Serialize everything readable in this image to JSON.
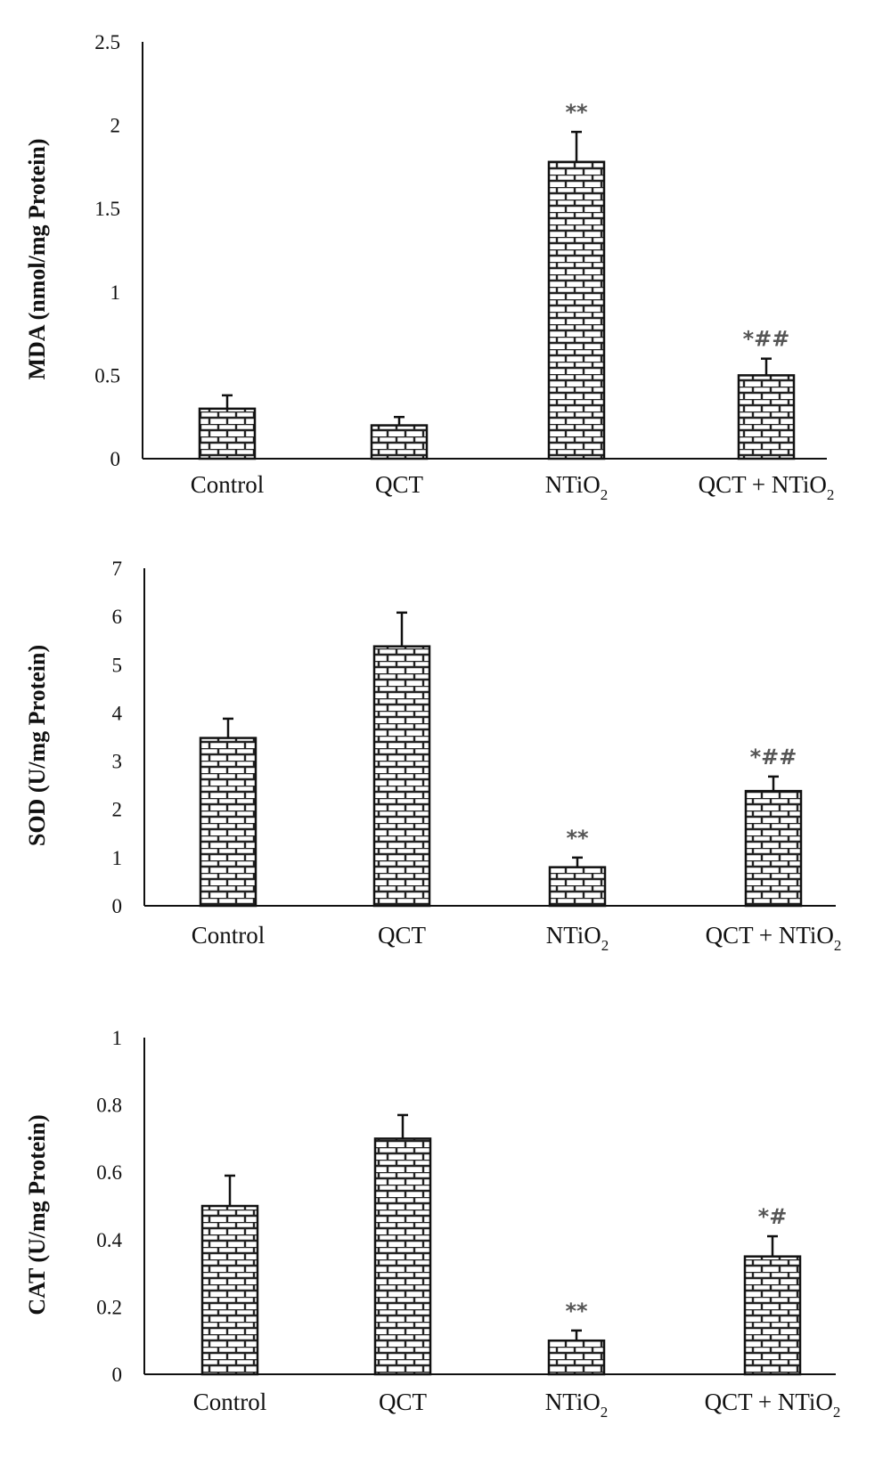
{
  "colors": {
    "axis": "#111111",
    "bar_fill": "#ffffff",
    "bar_pattern": "#222222",
    "annotation": "#555555"
  },
  "chart_data": [
    {
      "type": "bar",
      "title": "",
      "xlabel": "",
      "ylabel": "MDA (nmol/mg Protein)",
      "ylim": [
        0,
        2.5
      ],
      "yticks": [
        "0",
        "0.5",
        "1",
        "1.5",
        "2",
        "2.5"
      ],
      "categories": [
        {
          "base": "Control",
          "sub": ""
        },
        {
          "base": "QCT",
          "sub": ""
        },
        {
          "base": "NTiO",
          "sub": "2"
        },
        {
          "base": "QCT + NTiO",
          "sub": "2"
        }
      ],
      "values": [
        0.3,
        0.2,
        1.78,
        0.5
      ],
      "errors": [
        0.08,
        0.05,
        0.18,
        0.1
      ],
      "annotations": [
        "",
        "",
        "**",
        "*##"
      ],
      "bar_pattern": "brick",
      "grid": false
    },
    {
      "type": "bar",
      "title": "",
      "xlabel": "",
      "ylabel": "SOD (U/mg Protein)",
      "ylim": [
        0,
        7
      ],
      "yticks": [
        "0",
        "1",
        "2",
        "3",
        "4",
        "5",
        "6",
        "7"
      ],
      "categories": [
        {
          "base": "Control",
          "sub": ""
        },
        {
          "base": "QCT",
          "sub": ""
        },
        {
          "base": "NTiO",
          "sub": "2"
        },
        {
          "base": "QCT + NTiO",
          "sub": "2"
        }
      ],
      "values": [
        3.48,
        5.38,
        0.8,
        2.38
      ],
      "errors": [
        0.4,
        0.7,
        0.2,
        0.3
      ],
      "annotations": [
        "",
        "",
        "**",
        "*##"
      ],
      "bar_pattern": "brick",
      "grid": false
    },
    {
      "type": "bar",
      "title": "",
      "xlabel": "",
      "ylabel": "CAT (U/mg Protein)",
      "ylim": [
        0,
        1
      ],
      "yticks": [
        "0",
        "0.2",
        "0.4",
        "0.6",
        "0.8",
        "1"
      ],
      "categories": [
        {
          "base": "Control",
          "sub": ""
        },
        {
          "base": "QCT",
          "sub": ""
        },
        {
          "base": "NTiO",
          "sub": "2"
        },
        {
          "base": "QCT + NTiO",
          "sub": "2"
        }
      ],
      "values": [
        0.5,
        0.7,
        0.1,
        0.35
      ],
      "errors": [
        0.09,
        0.07,
        0.03,
        0.06
      ],
      "annotations": [
        "",
        "",
        "**",
        "*#"
      ],
      "bar_pattern": "brick",
      "grid": false
    }
  ]
}
